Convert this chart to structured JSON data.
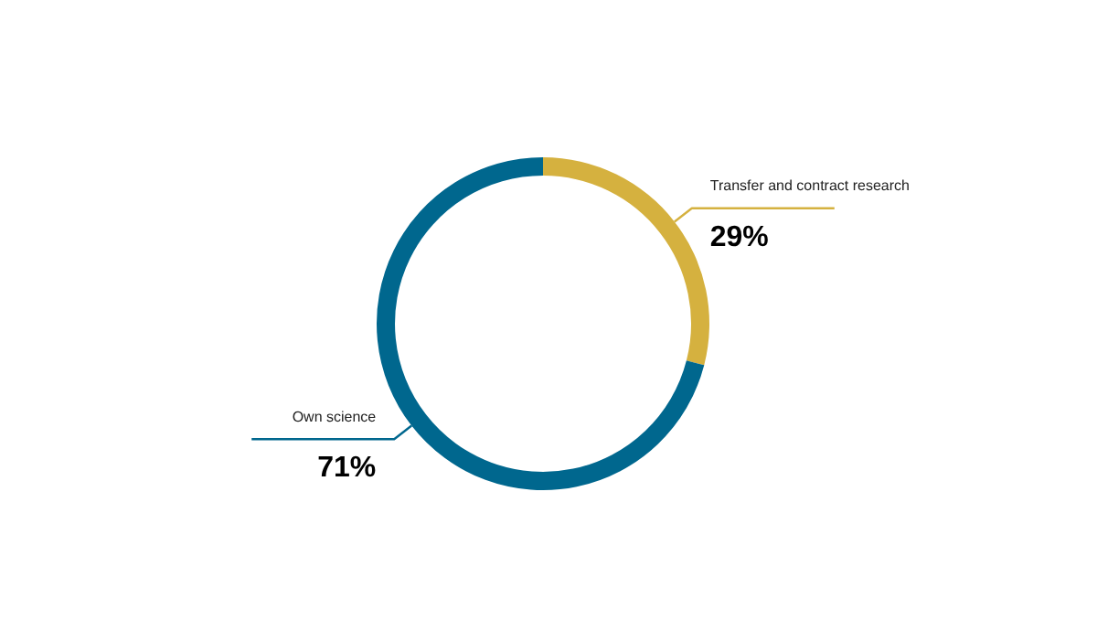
{
  "chart_data": {
    "type": "donut",
    "categories": [
      "Transfer and contract research",
      "Own science"
    ],
    "values": [
      29,
      71
    ],
    "colors": [
      "#d5b13f",
      "#00678e"
    ],
    "value_labels": [
      "29%",
      "71%"
    ],
    "legend": false
  }
}
